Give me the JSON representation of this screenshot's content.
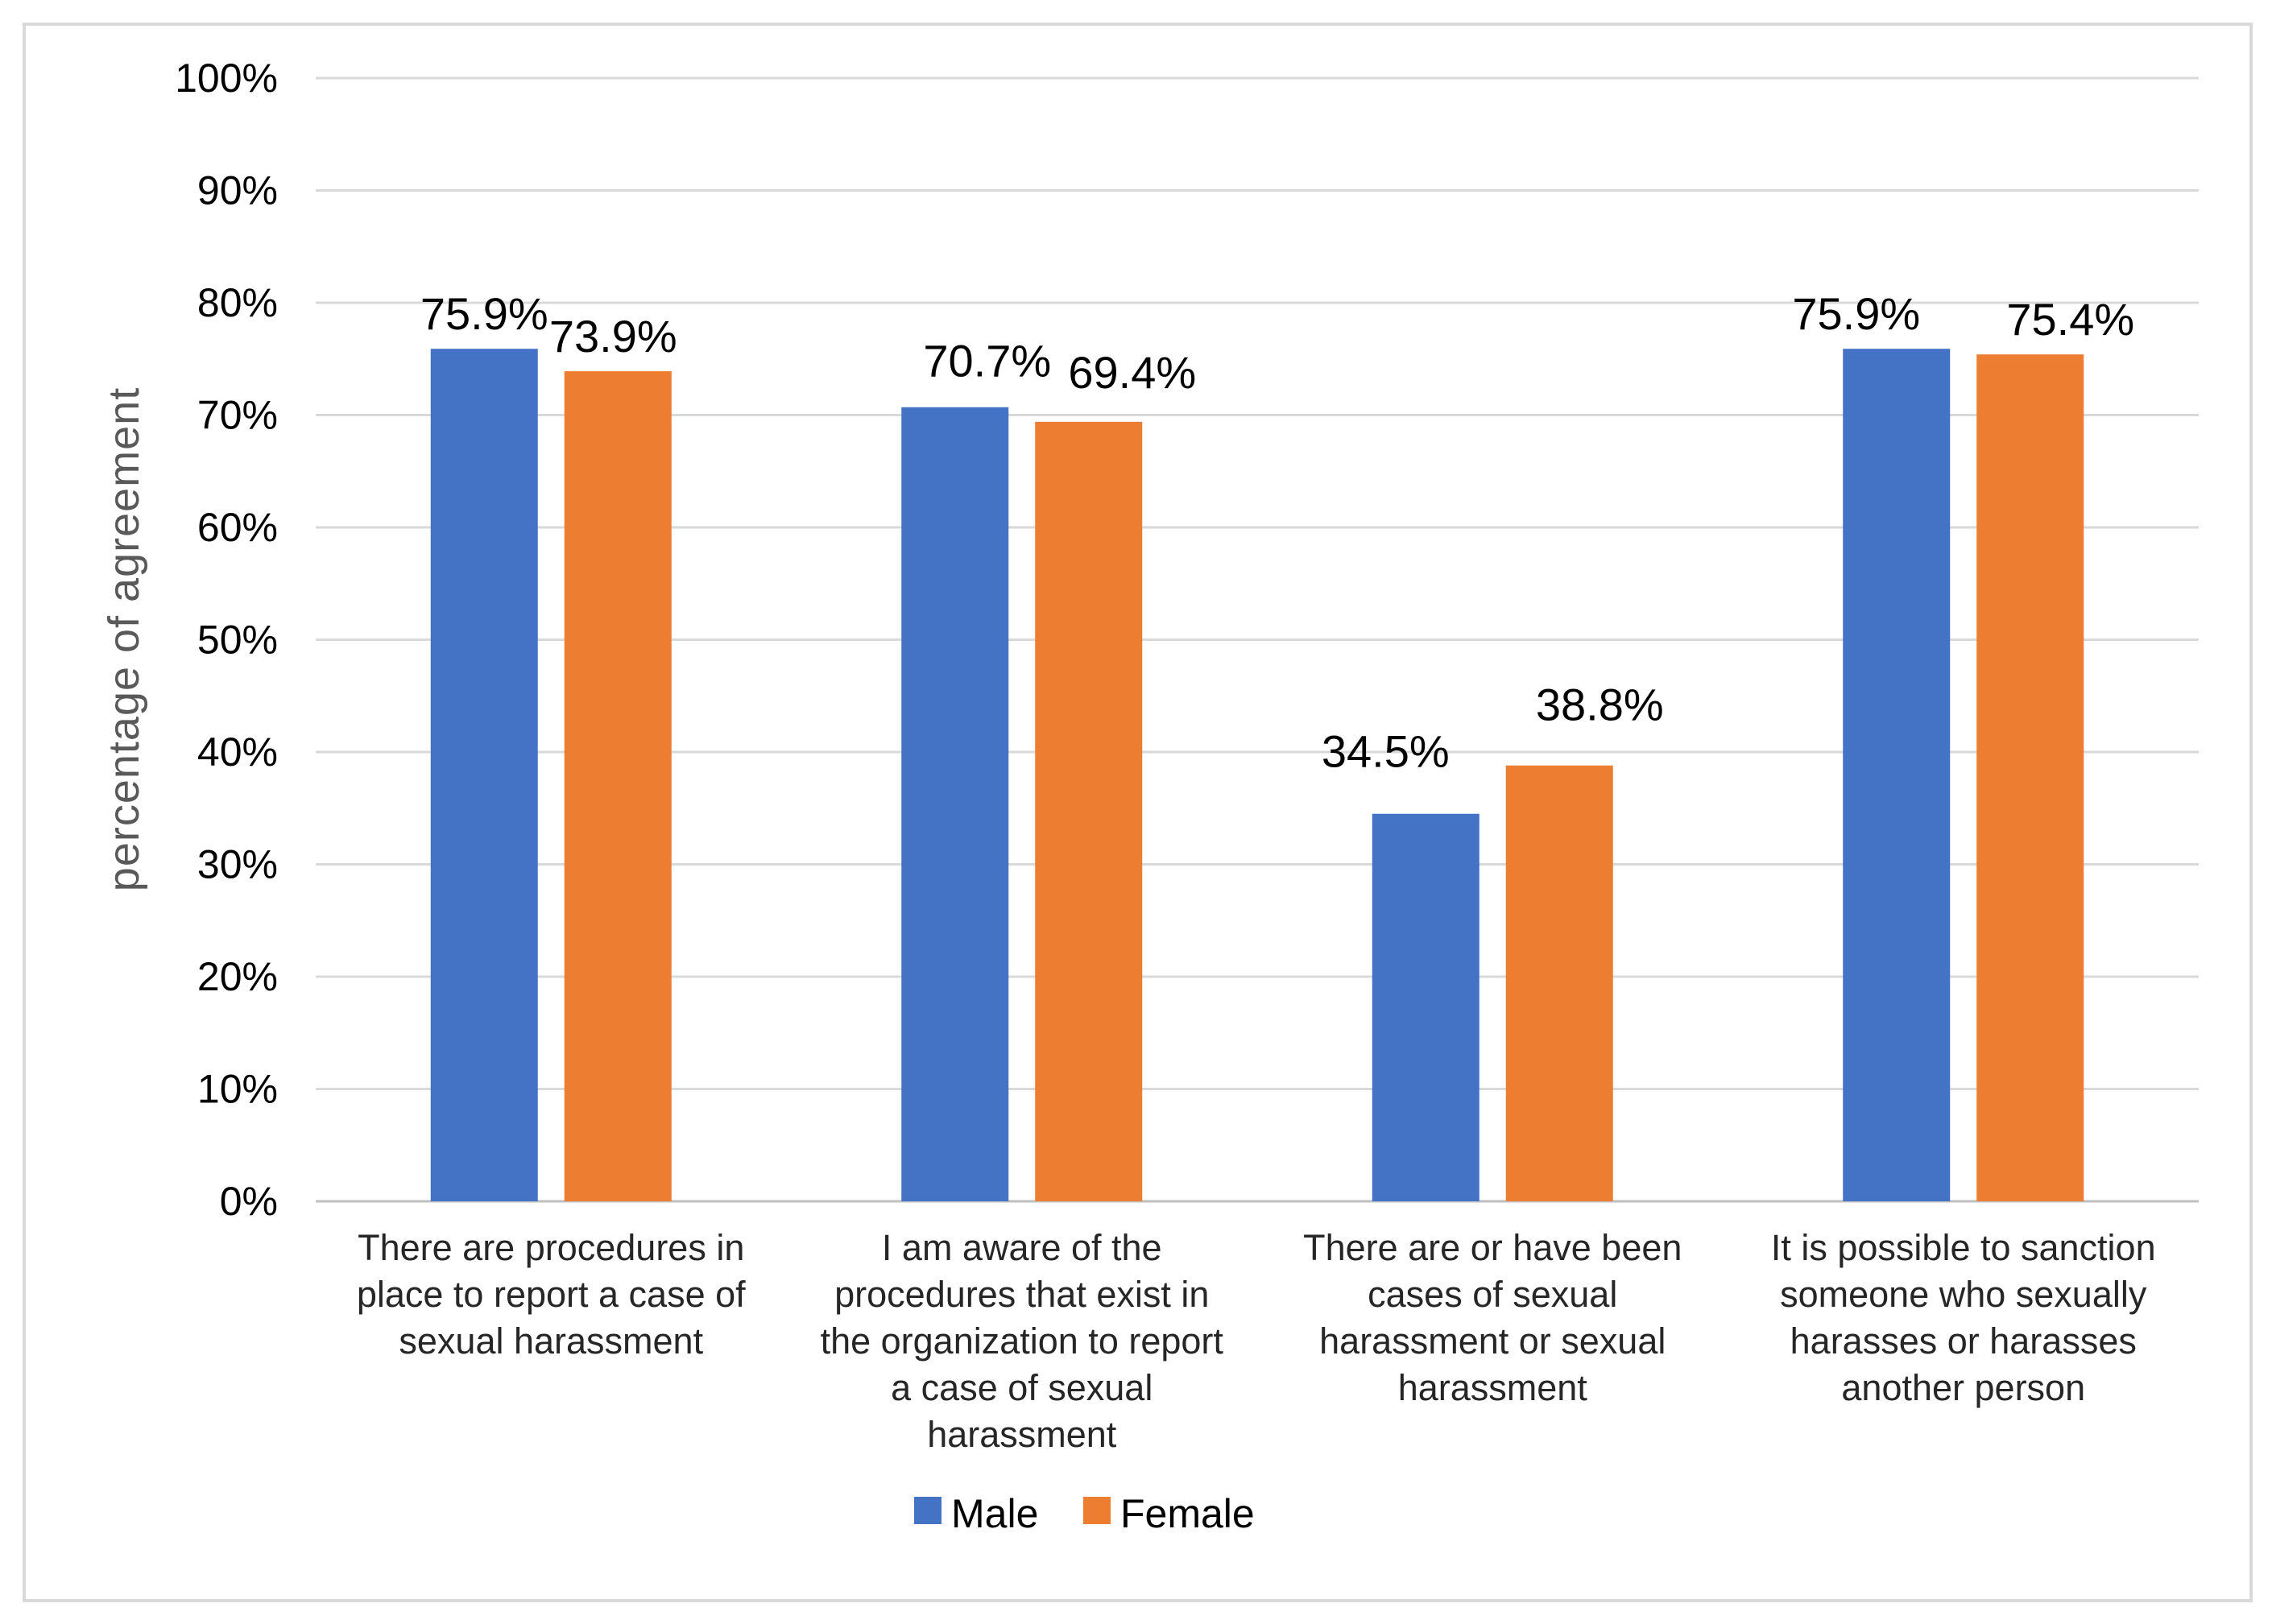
{
  "chart_data": {
    "type": "bar",
    "title": "",
    "xlabel": "",
    "ylabel": "percentage of agreement",
    "ylim": [
      0,
      100
    ],
    "ytick_step": 10,
    "ytick_suffix": "%",
    "grid": true,
    "legend_position": "bottom",
    "categories": [
      [
        "There are procedures in",
        "place to report a case of",
        "sexual harassment"
      ],
      [
        "I am aware of the",
        "procedures that exist in",
        "the organization to report",
        "a case of sexual",
        "harassment"
      ],
      [
        "There are or have been",
        "cases of sexual",
        "harassment or sexual",
        "harassment"
      ],
      [
        "It is possible to sanction",
        "someone who sexually",
        "harasses or harasses",
        "another person"
      ]
    ],
    "series": [
      {
        "name": "Male",
        "color": "#4472c4",
        "values": [
          75.9,
          70.7,
          34.5,
          75.9
        ],
        "labels": [
          "75.9%",
          "70.7%",
          "34.5%",
          "75.9%"
        ]
      },
      {
        "name": "Female",
        "color": "#ed7d31",
        "values": [
          73.9,
          69.4,
          38.8,
          75.4
        ],
        "labels": [
          "73.9%",
          "69.4%",
          "38.8%",
          "75.4%"
        ]
      }
    ]
  }
}
